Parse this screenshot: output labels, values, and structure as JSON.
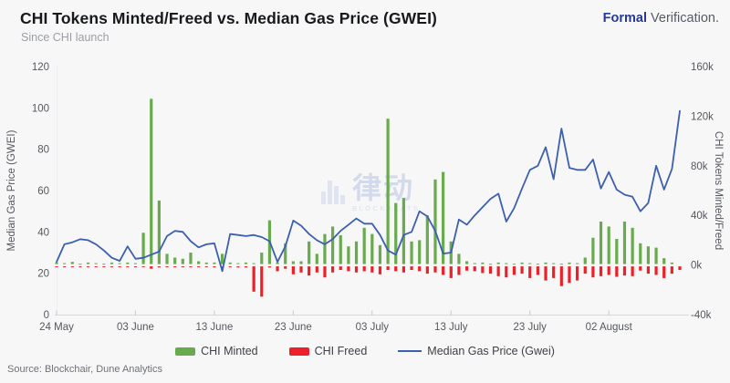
{
  "header": {
    "title": "CHI Tokens Minted/Freed vs. Median Gas Price (GWEI)",
    "subtitle": "Since CHI launch",
    "brand_bold": "Formal",
    "brand_rest": " Verification."
  },
  "footer": {
    "source": "Source: Blockchair, Dune Analytics"
  },
  "watermark": {
    "cjk": "律动",
    "latin": "BLOCKBEATS"
  },
  "legend": [
    {
      "label": "CHI Minted",
      "color": "#6aaa4f",
      "type": "bar"
    },
    {
      "label": "CHI Freed",
      "color": "#ec2028",
      "type": "bar"
    },
    {
      "label": "Median Gas Price (Gwei)",
      "color": "#3d5fb0",
      "type": "line"
    }
  ],
  "colors": {
    "background": "#f7f7f8",
    "minted_green": "#6aaa4f",
    "freed_red": "#ec2028",
    "gas_blue": "#3d5fb0",
    "axis_line": "#d8d8da",
    "tick_text": "#55585e",
    "brand_blue": "#24399b"
  },
  "chart_data": {
    "type": "mixed-bar-line",
    "title": "CHI Tokens Minted/Freed vs. Median Gas Price (GWEI)",
    "subtitle": "Since CHI launch",
    "cadence": "daily from 24 May to 11 August",
    "grid": false,
    "legend_position": "bottom",
    "x_tick_labels": [
      "24 May",
      "03 June",
      "13 June",
      "23 June",
      "03 July",
      "13 July",
      "23 July",
      "02 August"
    ],
    "x_tick_day_indices": [
      0,
      10,
      20,
      30,
      40,
      50,
      60,
      70
    ],
    "left_axis": {
      "label": "Median Gas Price (GWEI)",
      "min": 0,
      "max": 120,
      "tick_values": [
        0,
        20,
        40,
        60,
        80,
        100,
        120
      ],
      "tick_labels": [
        "0",
        "20",
        "40",
        "60",
        "80",
        "100",
        "120"
      ]
    },
    "right_axis": {
      "label": "CHI Tokens Minted/Freed",
      "unit": "thousand tokens",
      "min": -40,
      "max": 160,
      "tick_values": [
        -40,
        0,
        40,
        80,
        120,
        160
      ],
      "tick_labels": [
        "-40k",
        "0k",
        "40k",
        "80k",
        "120k",
        "160k"
      ]
    },
    "series": [
      {
        "name": "CHI Minted",
        "type": "bar",
        "axis": "right",
        "color": "#6aaa4f",
        "values": [
          2,
          1.5,
          2.5,
          1,
          2,
          1.5,
          1,
          2,
          1.5,
          2,
          1.5,
          26,
          134,
          52,
          9,
          6,
          5,
          10,
          3,
          2,
          2,
          9,
          2,
          1.5,
          2,
          1.5,
          10,
          36,
          2,
          17.5,
          3,
          3,
          19,
          9,
          25,
          31,
          24,
          15,
          19,
          30,
          25,
          16,
          118,
          50,
          54,
          19,
          20,
          40,
          69,
          75,
          19,
          9,
          3,
          1.5,
          2,
          1,
          2,
          1.5,
          1,
          2,
          1.5,
          1,
          2,
          1.5,
          1,
          2,
          1.5,
          6,
          22,
          35,
          31,
          21,
          35,
          30,
          17.5,
          15,
          14,
          5.5,
          2,
          0
        ]
      },
      {
        "name": "CHI Freed",
        "type": "bar",
        "axis": "right",
        "color": "#ec2028",
        "values": [
          -0.5,
          -0.5,
          -0.5,
          -0.5,
          -1,
          -0.5,
          -0.5,
          -1,
          -1,
          -1,
          -1,
          -1.5,
          -3,
          -2,
          -1.5,
          -1,
          -1.5,
          -1.5,
          -1,
          -1.5,
          -2,
          -2,
          -1.5,
          -2,
          -2,
          -21.5,
          -25.5,
          -2,
          -5,
          -3,
          -7.5,
          -6,
          -8.5,
          -6,
          -10,
          -6,
          -4,
          -5,
          -6,
          -5,
          -6,
          -7.5,
          -4,
          -5,
          -6,
          -4,
          -5,
          -7,
          -6,
          -8,
          -10.5,
          -8,
          -4.5,
          -5,
          -6.5,
          -7,
          -9,
          -10,
          -8,
          -7,
          -10.5,
          -8,
          -12.5,
          -10.5,
          -17,
          -14.5,
          -12.5,
          -7,
          -10,
          -9,
          -8,
          -9.5,
          -8.5,
          -9,
          -4.5,
          -7,
          -8,
          -10.5,
          -7,
          -4
        ]
      },
      {
        "name": "Median Gas Price (Gwei)",
        "type": "line",
        "axis": "left",
        "color": "#3d5fb0",
        "values": [
          25.5,
          34,
          35,
          36.5,
          36,
          34,
          31,
          27.5,
          26,
          33,
          27,
          27.5,
          29,
          30.5,
          38,
          40.5,
          40,
          35.5,
          32.5,
          34,
          34.5,
          21,
          39,
          38.5,
          38,
          38.5,
          37.5,
          35.5,
          25.5,
          33,
          45.5,
          43,
          39,
          36,
          34,
          36.5,
          40.5,
          43.5,
          46.5,
          44,
          44,
          38.5,
          31,
          29,
          38.5,
          40,
          50,
          47.5,
          40.5,
          29.5,
          30,
          46,
          43.5,
          48,
          52,
          56,
          58.5,
          45,
          51.5,
          61,
          70,
          72,
          81,
          65.5,
          90,
          71,
          70,
          70,
          75,
          61,
          69,
          60.5,
          58,
          57,
          50,
          54,
          72,
          60.5,
          70.5,
          98.5
        ]
      }
    ]
  }
}
